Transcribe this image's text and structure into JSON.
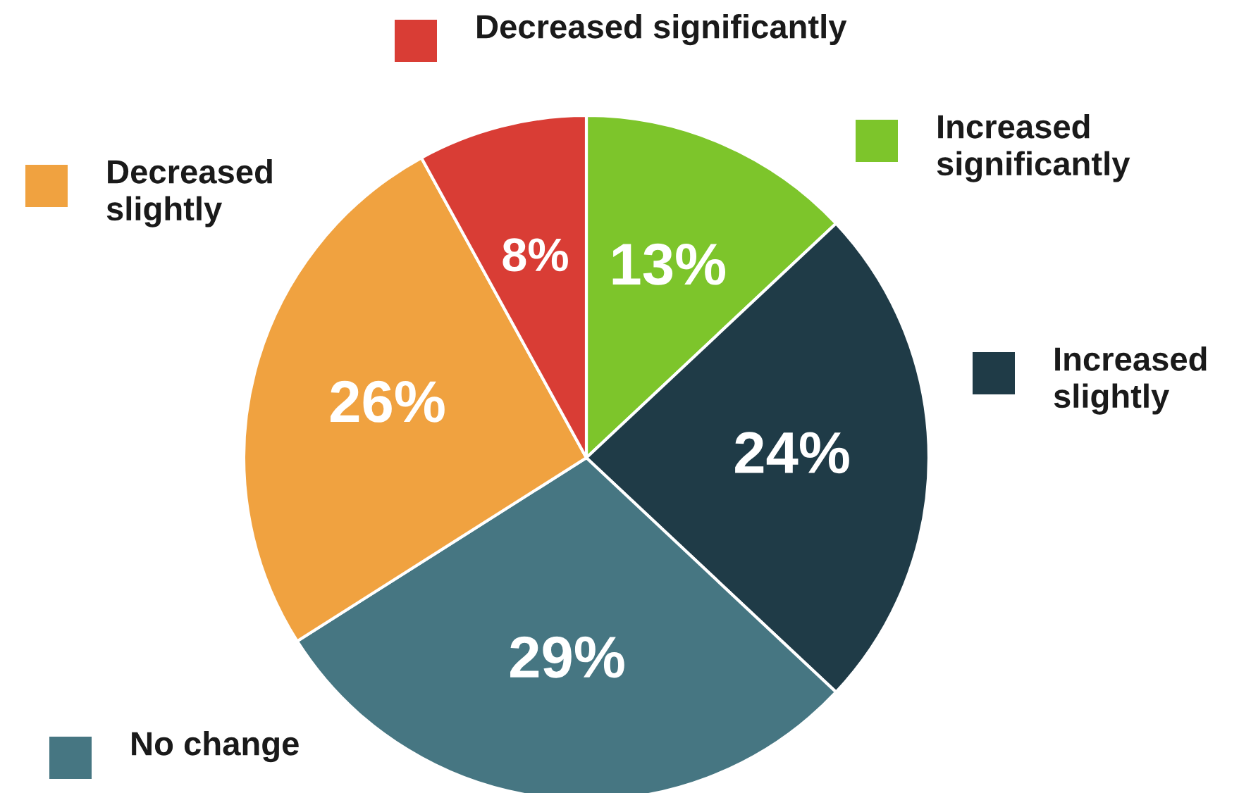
{
  "chart_data": {
    "type": "pie",
    "categories": [
      "Increased significantly",
      "Increased slightly",
      "No change",
      "Decreased slightly",
      "Decreased significantly"
    ],
    "values": [
      13,
      24,
      29,
      26,
      8
    ],
    "colors": [
      "#7dc52b",
      "#1f3b47",
      "#467682",
      "#f0a240",
      "#d93d35"
    ],
    "value_labels": [
      "13%",
      "24%",
      "29%",
      "26%",
      "8%"
    ],
    "legend": "right"
  }
}
